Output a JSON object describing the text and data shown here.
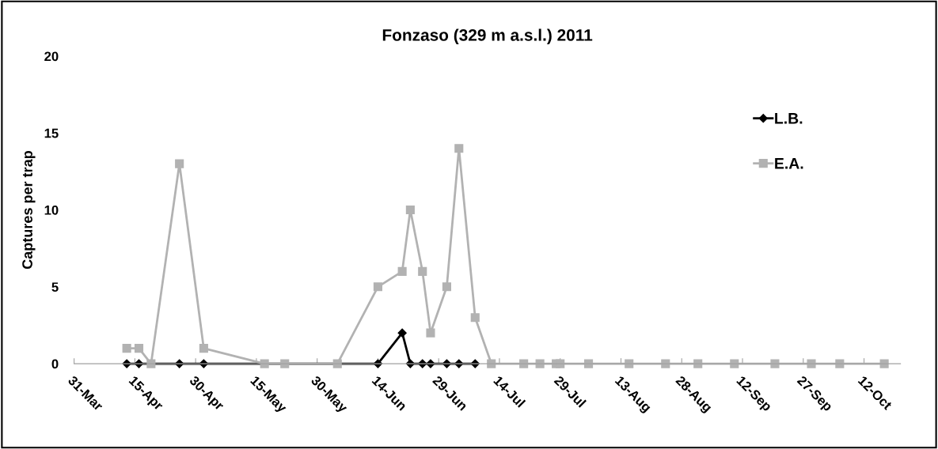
{
  "chart_data": {
    "type": "line",
    "title": "Fonzaso (329 m a.s.l.) 2011",
    "ylabel": "Captures per trap",
    "xlim": [
      "2011-03-31",
      "2011-10-21"
    ],
    "xticks": [
      {
        "value": "2011-03-31",
        "label": "31-Mar"
      },
      {
        "value": "2011-04-15",
        "label": "15-Apr"
      },
      {
        "value": "2011-04-30",
        "label": "30-Apr"
      },
      {
        "value": "2011-05-15",
        "label": "15-May"
      },
      {
        "value": "2011-05-30",
        "label": "30-May"
      },
      {
        "value": "2011-06-14",
        "label": "14-Jun"
      },
      {
        "value": "2011-06-29",
        "label": "29-Jun"
      },
      {
        "value": "2011-07-14",
        "label": "14-Jul"
      },
      {
        "value": "2011-07-29",
        "label": "29-Jul"
      },
      {
        "value": "2011-08-13",
        "label": "13-Aug"
      },
      {
        "value": "2011-08-28",
        "label": "28-Aug"
      },
      {
        "value": "2011-09-12",
        "label": "12-Sep"
      },
      {
        "value": "2011-09-27",
        "label": "27-Sep"
      },
      {
        "value": "2011-10-12",
        "label": "12-Oct"
      }
    ],
    "ylim": [
      0,
      20
    ],
    "yticks": [
      0,
      5,
      10,
      15,
      20
    ],
    "grid": false,
    "legend": "right",
    "series": [
      {
        "name": "L.B.",
        "color": "#000000",
        "marker": "diamond",
        "x": [
          "2011-04-13",
          "2011-04-16",
          "2011-04-26",
          "2011-05-02",
          "2011-06-14",
          "2011-06-20",
          "2011-06-22",
          "2011-06-25",
          "2011-06-27",
          "2011-07-01",
          "2011-07-04",
          "2011-07-08"
        ],
        "values": [
          0,
          0,
          0,
          0,
          0,
          2,
          0,
          0,
          0,
          0,
          0,
          0
        ]
      },
      {
        "name": "E.A.",
        "color": "#b2b2b2",
        "marker": "square",
        "x": [
          "2011-04-13",
          "2011-04-16",
          "2011-04-19",
          "2011-04-26",
          "2011-05-02",
          "2011-05-17",
          "2011-05-22",
          "2011-06-04",
          "2011-06-14",
          "2011-06-20",
          "2011-06-22",
          "2011-06-25",
          "2011-06-27",
          "2011-07-01",
          "2011-07-04",
          "2011-07-08",
          "2011-07-12",
          "2011-07-20",
          "2011-07-24",
          "2011-07-28",
          "2011-07-29",
          "2011-08-05",
          "2011-08-15",
          "2011-08-24",
          "2011-09-01",
          "2011-09-10",
          "2011-09-20",
          "2011-09-29",
          "2011-10-06",
          "2011-10-17"
        ],
        "values": [
          1,
          1,
          0,
          13,
          1,
          0,
          0,
          0,
          5,
          6,
          10,
          6,
          2,
          5,
          14,
          3,
          0,
          0,
          0,
          0,
          0,
          0,
          0,
          0,
          0,
          0,
          0,
          0,
          0,
          0
        ]
      }
    ]
  }
}
